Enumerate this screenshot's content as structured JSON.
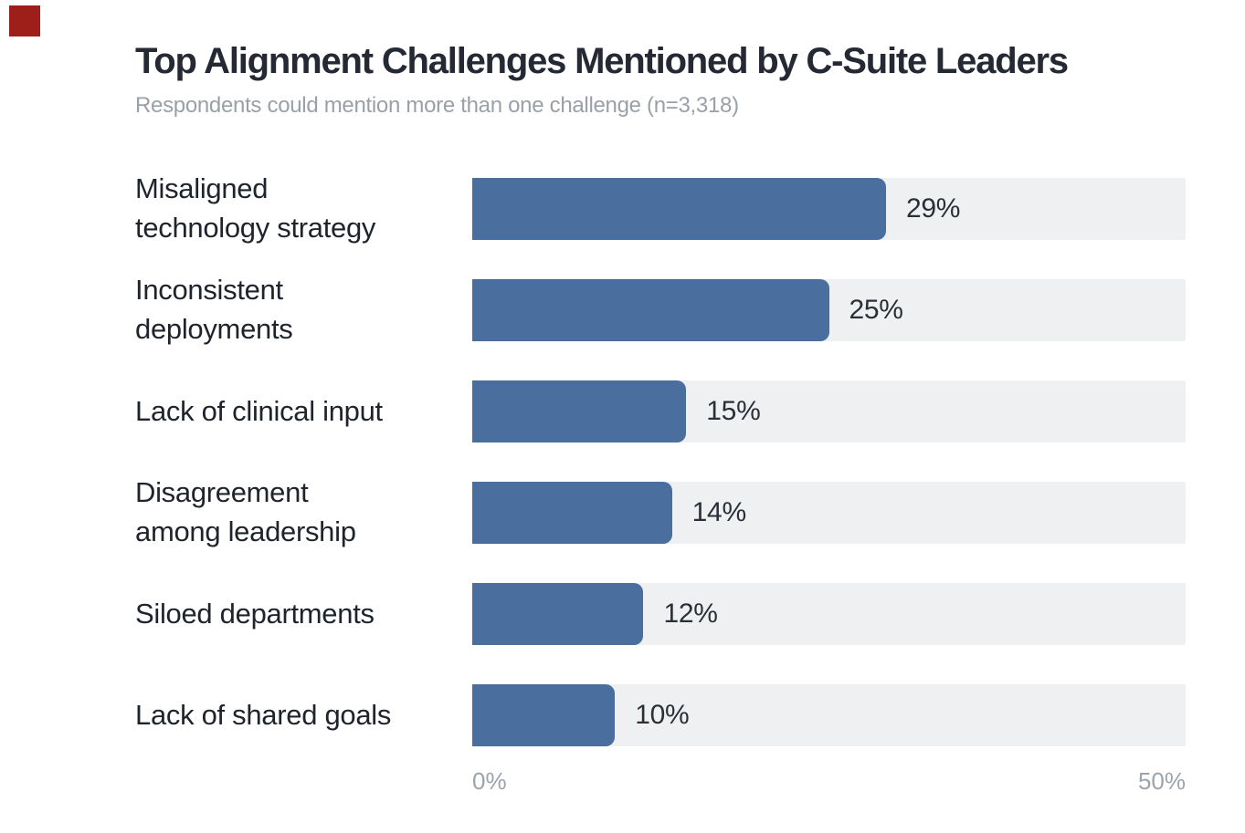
{
  "colors": {
    "background": "#ffffff",
    "bar": "#4a6e9e",
    "track": "#eff0f2",
    "title": "#242933",
    "subtitle": "#9aa0a8",
    "label": "#1f242c",
    "value": "#2b2f36",
    "axis": "#9ba3ac",
    "marker": "#9e1f1a"
  },
  "chart_data": {
    "type": "bar",
    "orientation": "horizontal",
    "title": "Top Alignment Challenges Mentioned by C-Suite Leaders",
    "subtitle": "Respondents could mention more than one challenge (n=3,318)",
    "categories": [
      "Misaligned technology strategy",
      "Inconsistent deployments",
      "Lack of clinical input",
      "Disagreement among leadership",
      "Siloed departments",
      "Lack of shared goals"
    ],
    "categories_wrapped": [
      "Misaligned\ntechnology strategy",
      "Inconsistent\ndeployments",
      "Lack of clinical input",
      "Disagreement\namong leadership",
      "Siloed departments",
      "Lack of shared goals"
    ],
    "values": [
      29,
      25,
      15,
      14,
      12,
      10
    ],
    "value_labels": [
      "29%",
      "25%",
      "15%",
      "14%",
      "12%",
      "10%"
    ],
    "xlabel": "",
    "ylabel": "",
    "xlim": [
      0,
      50
    ],
    "x_tick_labels": [
      "0%",
      "50%"
    ],
    "grid": false,
    "legend": false
  }
}
